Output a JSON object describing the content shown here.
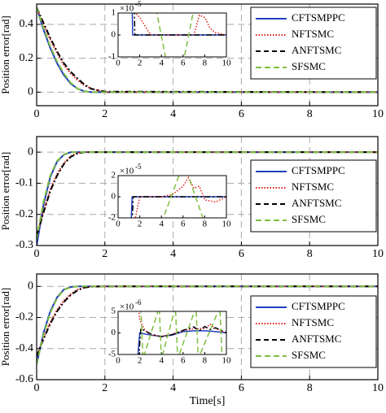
{
  "chart_data": [
    {
      "type": "line",
      "ylabel": "Position error[rad]",
      "x": [
        0,
        0.2,
        0.4,
        0.6,
        0.8,
        1.0,
        1.2,
        1.4,
        1.6,
        2,
        10
      ],
      "xlim": [
        0,
        10
      ],
      "xticks": [
        0,
        2,
        4,
        6,
        8,
        10
      ],
      "ylim": [
        -0.08,
        0.52
      ],
      "yticks": [
        0,
        0.2,
        0.4
      ],
      "grid": true,
      "legend": "upper right",
      "series": [
        {
          "name": "CFTSMPPC",
          "color": "#1f3fbf",
          "linestyle": "solid",
          "values": [
            0.5,
            0.37,
            0.26,
            0.17,
            0.1,
            0.05,
            0.02,
            0.005,
            0,
            0,
            0
          ]
        },
        {
          "name": "NFTSMC",
          "color": "#e0201b",
          "linestyle": "dotted",
          "values": [
            0.5,
            0.4,
            0.31,
            0.23,
            0.16,
            0.11,
            0.07,
            0.04,
            0.02,
            0,
            0
          ]
        },
        {
          "name": "ANFTSMC",
          "color": "#000000",
          "linestyle": "dashdot",
          "values": [
            0.5,
            0.41,
            0.32,
            0.24,
            0.17,
            0.12,
            0.08,
            0.045,
            0.02,
            0.003,
            0
          ]
        },
        {
          "name": "SFSMC",
          "color": "#7fbf3f",
          "linestyle": "dashed",
          "values": [
            0.5,
            0.38,
            0.27,
            0.18,
            0.11,
            0.055,
            0.02,
            0.005,
            0,
            0,
            0
          ]
        }
      ],
      "inset": {
        "xlim": [
          0,
          10
        ],
        "xticks": [
          0,
          2,
          4,
          6,
          8,
          10
        ],
        "ylim": [
          -1,
          1
        ],
        "yticks": [
          -1,
          0,
          1
        ],
        "multiplier": {
          "base": "×10",
          "exponent": "-5"
        },
        "series": [
          {
            "x": [
              1.3,
              1.35,
              10
            ],
            "values": [
              1.2,
              0,
              0
            ]
          },
          {
            "x": [
              1.5,
              1.6,
              2,
              3,
              4,
              5,
              6,
              7,
              7.5,
              8,
              8.5,
              9,
              10
            ],
            "values": [
              1.2,
              1,
              0.8,
              0,
              0,
              0,
              0,
              0,
              0.9,
              0.8,
              0.3,
              0.1,
              0
            ]
          },
          {
            "x": [
              1.5,
              1.55,
              10
            ],
            "values": [
              1.2,
              0,
              0
            ]
          },
          {
            "x": [
              3.5,
              4.5,
              6,
              7,
              10
            ],
            "values": [
              1.2,
              -1.3,
              -1.3,
              1.2,
              1.2
            ]
          }
        ]
      }
    },
    {
      "type": "line",
      "ylabel": "Position error[rad]",
      "x": [
        0,
        0.2,
        0.4,
        0.6,
        0.8,
        1.0,
        1.2,
        1.4,
        1.6,
        2,
        10
      ],
      "xlim": [
        0,
        10
      ],
      "xticks": [
        0,
        2,
        4,
        6,
        8,
        10
      ],
      "ylim": [
        -0.3,
        0.05
      ],
      "yticks": [
        -0.3,
        -0.2,
        -0.1,
        0
      ],
      "grid": true,
      "legend": "center right",
      "series": [
        {
          "name": "CFTSMPPC",
          "color": "#1f3fbf",
          "linestyle": "solid",
          "values": [
            -0.3,
            -0.17,
            -0.08,
            -0.03,
            -0.008,
            0,
            0,
            0,
            0,
            0,
            0
          ]
        },
        {
          "name": "NFTSMC",
          "color": "#e0201b",
          "linestyle": "dotted",
          "values": [
            -0.27,
            -0.19,
            -0.12,
            -0.07,
            -0.035,
            -0.013,
            -0.003,
            0,
            0,
            0,
            0
          ]
        },
        {
          "name": "ANFTSMC",
          "color": "#000000",
          "linestyle": "dashdot",
          "values": [
            -0.27,
            -0.195,
            -0.125,
            -0.075,
            -0.038,
            -0.015,
            -0.004,
            0,
            0,
            0,
            0
          ]
        },
        {
          "name": "SFSMC",
          "color": "#7fbf3f",
          "linestyle": "dashed",
          "values": [
            -0.28,
            -0.16,
            -0.075,
            -0.028,
            -0.007,
            0,
            0,
            0,
            0,
            0,
            0
          ]
        }
      ],
      "inset": {
        "xlim": [
          0,
          10
        ],
        "xticks": [
          0,
          2,
          4,
          6,
          8,
          10
        ],
        "ylim": [
          -2,
          2
        ],
        "yticks": [
          -2,
          0,
          2
        ],
        "multiplier": {
          "base": "×10",
          "exponent": "-5"
        },
        "series": [
          {
            "x": [
              1.2,
              1.3,
              10
            ],
            "values": [
              -2.5,
              0,
              0
            ]
          },
          {
            "x": [
              1.5,
              2,
              4,
              5,
              6,
              6.5,
              7,
              7.5,
              8,
              9,
              10
            ],
            "values": [
              -2.5,
              0,
              0,
              0.2,
              1,
              1.8,
              0.8,
              1,
              -0.3,
              -0.5,
              0
            ]
          },
          {
            "x": [
              1.3,
              1.4,
              10
            ],
            "values": [
              -2.5,
              0,
              0
            ]
          },
          {
            "x": [
              4,
              5.8,
              6.3,
              8
            ],
            "values": [
              -2.5,
              2.5,
              2.5,
              -2.5
            ]
          }
        ]
      }
    },
    {
      "type": "line",
      "ylabel": "Position error[rad]",
      "xlabel": "Time[s]",
      "x": [
        0,
        0.2,
        0.4,
        0.6,
        0.8,
        1.0,
        1.2,
        1.4,
        1.6,
        2,
        10
      ],
      "xlim": [
        0,
        10
      ],
      "xticks": [
        0,
        2,
        4,
        6,
        8,
        10
      ],
      "ylim": [
        -0.6,
        0.08
      ],
      "yticks": [
        -0.6,
        -0.4,
        -0.2,
        0
      ],
      "grid": true,
      "legend": "center right",
      "series": [
        {
          "name": "CFTSMPPC",
          "color": "#1f3fbf",
          "linestyle": "solid",
          "values": [
            -0.5,
            -0.3,
            -0.16,
            -0.07,
            -0.02,
            -0.004,
            0,
            0,
            0,
            0,
            0
          ]
        },
        {
          "name": "NFTSMC",
          "color": "#e0201b",
          "linestyle": "dotted",
          "values": [
            -0.45,
            -0.33,
            -0.23,
            -0.15,
            -0.09,
            -0.05,
            -0.02,
            -0.006,
            0,
            0,
            0
          ]
        },
        {
          "name": "ANFTSMC",
          "color": "#000000",
          "linestyle": "dashdot",
          "values": [
            -0.45,
            -0.34,
            -0.24,
            -0.16,
            -0.1,
            -0.055,
            -0.025,
            -0.008,
            -0.002,
            0,
            0
          ]
        },
        {
          "name": "SFSMC",
          "color": "#7fbf3f",
          "linestyle": "dashed",
          "values": [
            -0.5,
            -0.31,
            -0.17,
            -0.075,
            -0.022,
            -0.005,
            0,
            0,
            0,
            0,
            0
          ]
        }
      ],
      "inset": {
        "xlim": [
          0,
          10
        ],
        "xticks": [
          0,
          2,
          4,
          6,
          8,
          10
        ],
        "ylim": [
          -5,
          5
        ],
        "yticks": [
          -5,
          0,
          5
        ],
        "multiplier": {
          "base": "×10",
          "exponent": "-6"
        },
        "series": [
          {
            "x": [
              1.8,
              2,
              3,
              4,
              5,
              6,
              7,
              8,
              9,
              10
            ],
            "values": [
              -6,
              0,
              -0.5,
              -0.8,
              -0.5,
              0.3,
              0.5,
              0.5,
              0.3,
              0
            ]
          },
          {
            "x": [
              1.9,
              2,
              2.2,
              2.5,
              3,
              4,
              5,
              6,
              7,
              8,
              8.5,
              9,
              9.5,
              10
            ],
            "values": [
              6,
              3,
              2,
              0.5,
              -0.5,
              -0.8,
              -0.3,
              0.5,
              1,
              1,
              2,
              1,
              0.5,
              0
            ]
          },
          {
            "x": [
              1.9,
              2.1,
              2.5,
              3,
              3.5,
              4,
              5,
              6,
              7,
              7.5,
              8,
              8.5,
              9,
              10
            ],
            "values": [
              -6,
              1,
              0.5,
              -0.2,
              -0.6,
              -0.9,
              -0.4,
              0.6,
              1.4,
              0.5,
              1.5,
              0.8,
              1.2,
              0
            ]
          },
          {
            "x": [
              2.1,
              2.3,
              3.8,
              4.0,
              5.3,
              5.5,
              7.2,
              7.4,
              9.4,
              9.6
            ],
            "values": [
              6,
              -6,
              6,
              -6,
              6,
              -6,
              6,
              -6,
              6,
              -6
            ]
          }
        ]
      }
    }
  ]
}
